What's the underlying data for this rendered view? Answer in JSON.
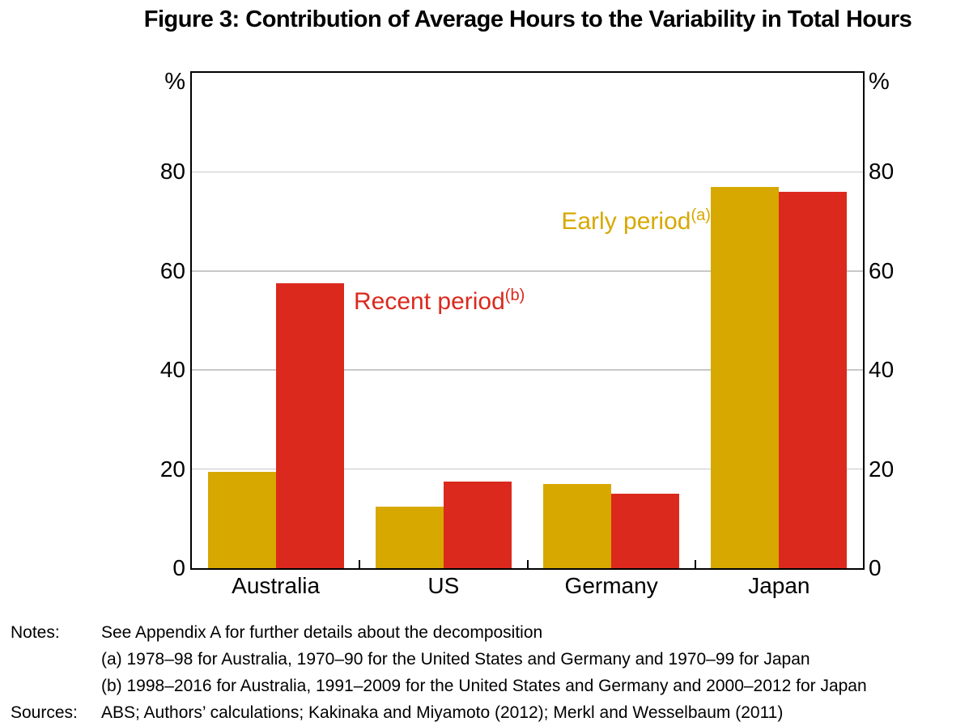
{
  "title": "Figure 3: Contribution of Average Hours to the Variability in Total Hours",
  "chart_data": {
    "type": "bar",
    "title": "Figure 3: Contribution of Average Hours to the Variability in Total Hours",
    "unit_label": "%",
    "categories": [
      "Australia",
      "US",
      "Germany",
      "Japan"
    ],
    "series": [
      {
        "name": "Early period",
        "note_ref": "(a)",
        "color": "#D7A800",
        "values": [
          19.5,
          12.5,
          17,
          77
        ]
      },
      {
        "name": "Recent period",
        "note_ref": "(b)",
        "color": "#DB291D",
        "values": [
          57.5,
          17.5,
          15,
          76
        ]
      }
    ],
    "ylim": [
      0,
      100
    ],
    "yticks": [
      0,
      20,
      40,
      60,
      80
    ],
    "grid": true,
    "y_axis_sides": "both",
    "legend_position": "in-plot text annotations"
  },
  "notes": {
    "label": "Notes:",
    "lines": [
      "See Appendix A for further details about the decomposition",
      "(a) 1978–98 for Australia, 1970–90 for the United States and Germany and 1970–99 for Japan",
      "(b) 1998–2016 for Australia, 1991–2009 for the United States and Germany and 2000–2012 for Japan"
    ],
    "sources_label": "Sources:",
    "sources": "ABS; Authors’ calculations; Kakinaka and Miyamoto (2012); Merkl and Wesselbaum (2011)"
  }
}
